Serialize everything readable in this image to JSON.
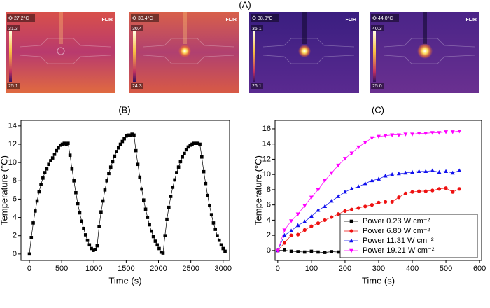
{
  "panel_a": {
    "label": "(A)",
    "brand": "FLIR",
    "images": [
      {
        "spot": "27.2°C",
        "max": "31.3",
        "min": "25.1"
      },
      {
        "spot": "30.4°C",
        "max": "30.4",
        "min": "24.3"
      },
      {
        "spot": "38.0°C",
        "max": "35.1",
        "min": "26.1"
      },
      {
        "spot": "44.0°C",
        "max": "40.3",
        "min": "25.0"
      }
    ]
  },
  "chart_data": [
    {
      "type": "line",
      "label": "(B)",
      "x_label": "Time (s)",
      "y_label": "Temperature (°C)",
      "xlim": [
        -130,
        3100
      ],
      "xticks": [
        0,
        500,
        1000,
        1500,
        2000,
        2500,
        3000
      ],
      "ylim": [
        -0.7,
        14.6
      ],
      "yticks": [
        0,
        2,
        4,
        6,
        8,
        10,
        12,
        14
      ],
      "series": [
        {
          "color": "#000000",
          "marker": "square",
          "x": [
            0,
            30,
            60,
            90,
            120,
            150,
            180,
            210,
            240,
            270,
            300,
            330,
            360,
            390,
            420,
            450,
            480,
            510,
            540,
            570,
            600,
            630,
            660,
            690,
            720,
            750,
            780,
            810,
            840,
            870,
            900,
            930,
            960,
            990,
            1020,
            1050,
            1080,
            1110,
            1140,
            1170,
            1200,
            1230,
            1260,
            1290,
            1320,
            1350,
            1380,
            1410,
            1440,
            1470,
            1500,
            1530,
            1560,
            1590,
            1620,
            1650,
            1680,
            1710,
            1740,
            1770,
            1800,
            1830,
            1860,
            1890,
            1920,
            1950,
            1980,
            2010,
            2040,
            2070,
            2100,
            2130,
            2160,
            2190,
            2220,
            2250,
            2280,
            2310,
            2340,
            2370,
            2400,
            2430,
            2460,
            2490,
            2520,
            2550,
            2580,
            2610,
            2640,
            2670,
            2700,
            2730,
            2760,
            2790,
            2820,
            2850,
            2880,
            2910,
            2940,
            2970,
            3000,
            3030
          ],
          "values": [
            0,
            1.8,
            3.4,
            4.7,
            5.8,
            6.8,
            7.6,
            8.3,
            8.9,
            9.3,
            9.8,
            10.2,
            10.5,
            10.9,
            11.3,
            11.6,
            11.9,
            12.0,
            12.1,
            12.0,
            12.1,
            10.8,
            9.3,
            8.0,
            6.7,
            5.5,
            4.5,
            3.6,
            2.8,
            2.1,
            1.5,
            1.0,
            0.6,
            0.4,
            0.5,
            0.9,
            3.0,
            4.6,
            5.8,
            7.0,
            8.0,
            8.8,
            9.5,
            10.1,
            10.7,
            11.2,
            11.6,
            12.0,
            12.3,
            12.6,
            12.9,
            13.0,
            13.0,
            13.1,
            13.0,
            11.3,
            9.8,
            8.4,
            7.1,
            5.9,
            4.9,
            4.0,
            3.2,
            2.5,
            1.9,
            1.4,
            1.0,
            0.6,
            0.2,
            0.1,
            2.0,
            3.8,
            5.1,
            6.3,
            7.3,
            8.1,
            8.9,
            9.5,
            10.1,
            10.6,
            11.0,
            11.4,
            11.7,
            11.9,
            12.0,
            12.1,
            12.1,
            12.1,
            12.0,
            10.6,
            9.0,
            7.7,
            6.4,
            5.3,
            4.3,
            3.4,
            2.7,
            2.0,
            1.5,
            1.0,
            0.6,
            0.3
          ]
        }
      ]
    },
    {
      "type": "line",
      "label": "(C)",
      "x_label": "Time (s)",
      "y_label": "Temperature (°C)",
      "xlim": [
        -8,
        606
      ],
      "xticks": [
        0,
        100,
        200,
        300,
        400,
        500,
        600
      ],
      "ylim": [
        -1.3,
        17.1
      ],
      "yticks": [
        0,
        2,
        4,
        6,
        8,
        10,
        12,
        14,
        16
      ],
      "legend": "lower right",
      "x": [
        0,
        20,
        40,
        60,
        80,
        100,
        120,
        140,
        160,
        180,
        200,
        220,
        240,
        260,
        280,
        300,
        320,
        340,
        360,
        380,
        400,
        420,
        440,
        460,
        480,
        500,
        520,
        540
      ],
      "series": [
        {
          "name": "Power  0.23 W cm⁻²",
          "color": "#000000",
          "marker": "square",
          "values": [
            0,
            0.05,
            -0.1,
            -0.15,
            -0.2,
            -0.1,
            -0.2,
            -0.25,
            -0.15,
            -0.2,
            -0.1,
            -0.2,
            -0.25,
            -0.1,
            0.05,
            0,
            -0.1,
            -0.2,
            -0.1,
            -0.15,
            -0.1,
            0.05,
            -0.05,
            -0.15,
            -0.2,
            -0.1,
            -0.2,
            -0.25
          ]
        },
        {
          "name": "Power  6.80 W cm⁻²",
          "color": "#ee1111",
          "marker": "circle",
          "values": [
            0,
            1.0,
            2.0,
            2.1,
            2.7,
            3.2,
            3.6,
            4.0,
            4.4,
            4.8,
            5.2,
            5.4,
            5.6,
            5.8,
            6.0,
            6.3,
            6.4,
            6.4,
            7.0,
            7.5,
            7.7,
            7.8,
            7.8,
            7.9,
            8.1,
            8.2,
            7.7,
            8.1
          ]
        },
        {
          "name": "Power 11.31 W cm⁻²",
          "color": "#1111ee",
          "marker": "triangle-up",
          "values": [
            0,
            2.0,
            2.6,
            3.3,
            3.8,
            4.5,
            5.3,
            5.8,
            6.5,
            7.1,
            7.7,
            8.1,
            8.4,
            8.8,
            9.2,
            9.4,
            9.8,
            10.0,
            10.1,
            10.2,
            10.3,
            10.4,
            10.4,
            10.5,
            10.3,
            10.4,
            10.2,
            10.5
          ]
        },
        {
          "name": "Power 19.21 W cm⁻²",
          "color": "#ff00ff",
          "marker": "triangle-down",
          "values": [
            0,
            2.7,
            3.9,
            4.8,
            5.9,
            7.0,
            8.0,
            9.2,
            10.2,
            11.2,
            12.1,
            12.8,
            13.6,
            14.2,
            14.8,
            15.0,
            15.1,
            15.2,
            15.2,
            15.3,
            15.3,
            15.4,
            15.4,
            15.5,
            15.5,
            15.6,
            15.6,
            15.7
          ]
        }
      ]
    }
  ]
}
